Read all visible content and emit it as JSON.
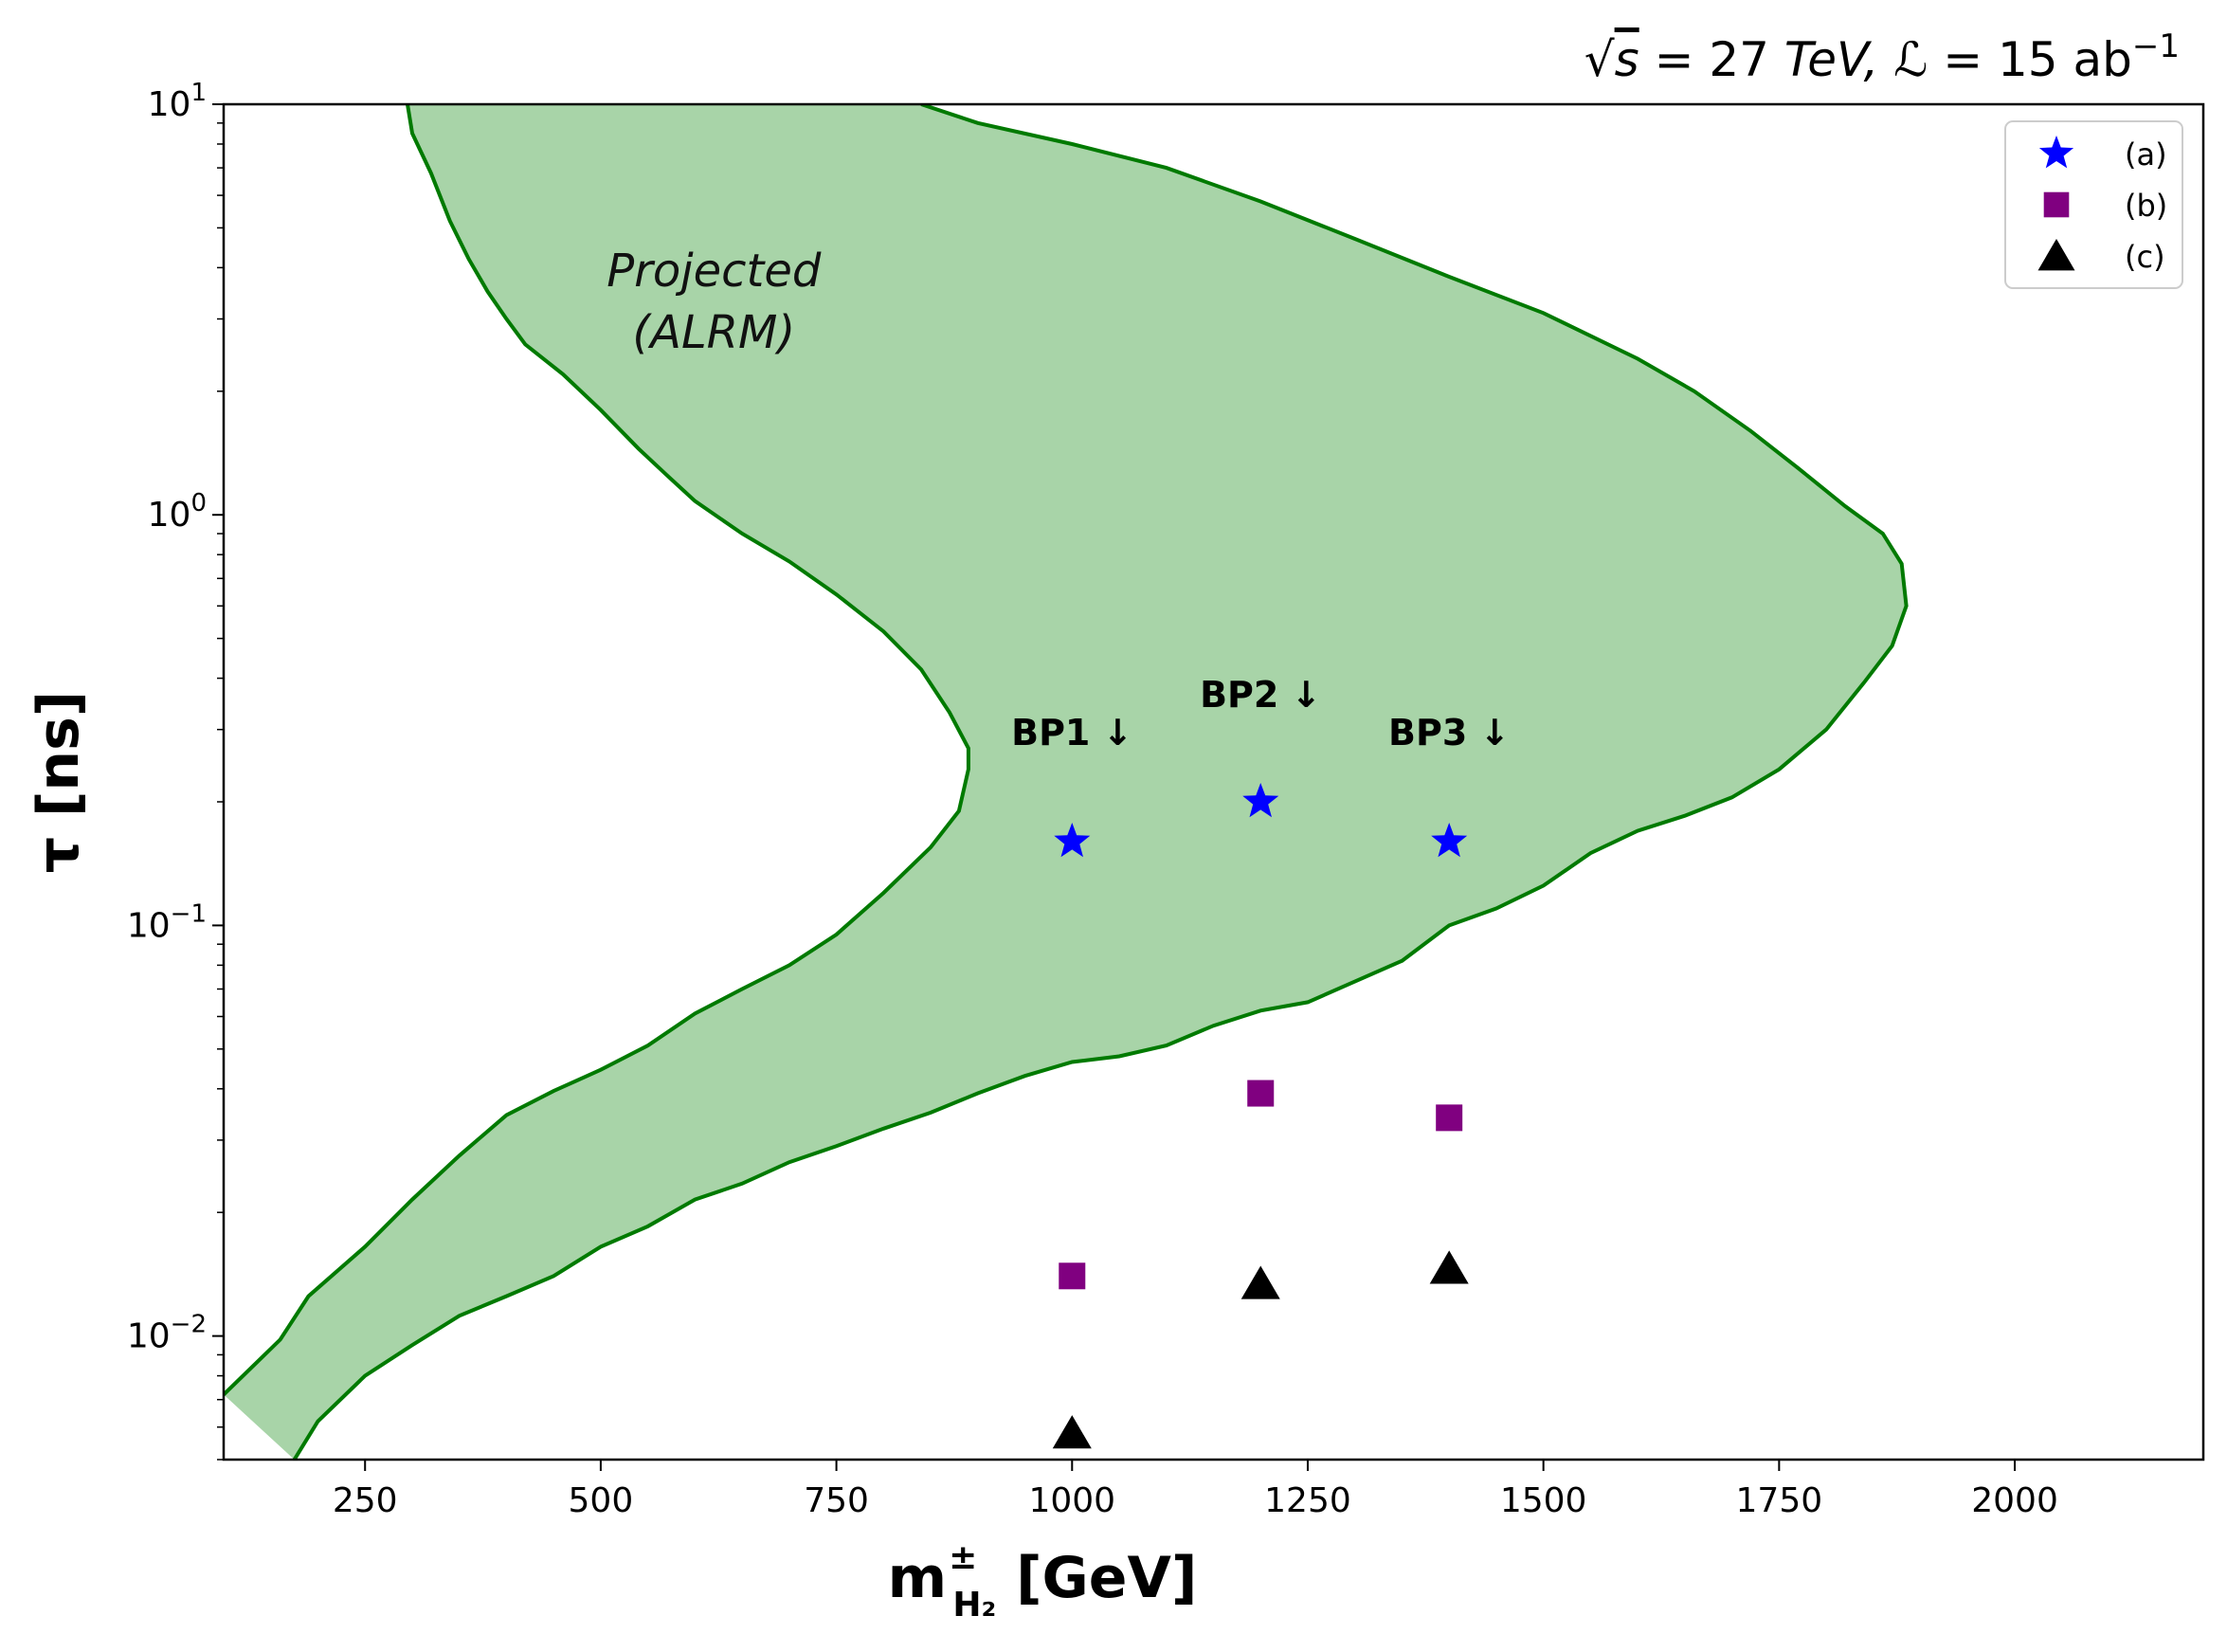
{
  "chart_data": {
    "type": "scatter",
    "title": "√s = 27 TeV,  ℒ = 15 ab⁻¹",
    "title_parts": {
      "sqrt": "√",
      "s": "s",
      "eq1": " = 27 ",
      "tev": "TeV,",
      "lum": "  ℒ",
      "eq2": " = 15 ab",
      "sup": "−1"
    },
    "xlabel": {
      "main": "m",
      "sup": "±",
      "sub": "H₂",
      "unit": " [GeV]"
    },
    "ylabel": "τ [ns]",
    "xlim": [
      100,
      2200
    ],
    "ylim": [
      0.005,
      10
    ],
    "yscale": "log",
    "x_ticks": [
      {
        "value": 250,
        "label": "250"
      },
      {
        "value": 500,
        "label": "500"
      },
      {
        "value": 750,
        "label": "750"
      },
      {
        "value": 1000,
        "label": "1000"
      },
      {
        "value": 1250,
        "label": "1250"
      },
      {
        "value": 1500,
        "label": "1500"
      },
      {
        "value": 1750,
        "label": "1750"
      },
      {
        "value": 2000,
        "label": "2000"
      }
    ],
    "y_ticks": [
      {
        "value": 0.01,
        "base": "10",
        "exp": "−2"
      },
      {
        "value": 0.1,
        "base": "10",
        "exp": "−1"
      },
      {
        "value": 1,
        "base": "10",
        "exp": "0"
      },
      {
        "value": 10,
        "base": "10",
        "exp": "1"
      }
    ],
    "region": {
      "label_line1": "Projected",
      "label_line2": "(ALRM)",
      "fill_color": "#a8d4a8",
      "line_color": "#007a00",
      "upper_boundary": [
        [
          100,
          0.0072
        ],
        [
          160,
          0.0098
        ],
        [
          190,
          0.0125
        ],
        [
          250,
          0.0165
        ],
        [
          300,
          0.0215
        ],
        [
          350,
          0.0275
        ],
        [
          400,
          0.0345
        ],
        [
          450,
          0.0395
        ],
        [
          500,
          0.0445
        ],
        [
          550,
          0.051
        ],
        [
          600,
          0.061
        ],
        [
          650,
          0.07
        ],
        [
          700,
          0.08
        ],
        [
          750,
          0.095
        ],
        [
          800,
          0.12
        ],
        [
          850,
          0.155
        ],
        [
          880,
          0.19
        ],
        [
          890,
          0.24
        ],
        [
          890,
          0.27
        ],
        [
          870,
          0.33
        ],
        [
          840,
          0.42
        ],
        [
          800,
          0.52
        ],
        [
          750,
          0.64
        ],
        [
          700,
          0.77
        ],
        [
          650,
          0.9
        ],
        [
          600,
          1.08
        ],
        [
          570,
          1.25
        ],
        [
          540,
          1.45
        ],
        [
          500,
          1.8
        ],
        [
          460,
          2.2
        ],
        [
          420,
          2.6
        ],
        [
          400,
          3.0
        ],
        [
          380,
          3.5
        ],
        [
          360,
          4.2
        ],
        [
          340,
          5.2
        ],
        [
          320,
          6.8
        ],
        [
          300,
          8.5
        ],
        [
          295,
          10.0
        ]
      ],
      "lower_boundary": [
        [
          175,
          0.005
        ],
        [
          200,
          0.0062
        ],
        [
          250,
          0.008
        ],
        [
          300,
          0.0095
        ],
        [
          350,
          0.0112
        ],
        [
          400,
          0.0125
        ],
        [
          450,
          0.014
        ],
        [
          500,
          0.0165
        ],
        [
          550,
          0.0185
        ],
        [
          600,
          0.0215
        ],
        [
          650,
          0.0235
        ],
        [
          700,
          0.0265
        ],
        [
          750,
          0.029
        ],
        [
          800,
          0.032
        ],
        [
          850,
          0.035
        ],
        [
          900,
          0.039
        ],
        [
          950,
          0.043
        ],
        [
          1000,
          0.0465
        ],
        [
          1050,
          0.048
        ],
        [
          1100,
          0.051
        ],
        [
          1150,
          0.057
        ],
        [
          1200,
          0.062
        ],
        [
          1250,
          0.065
        ],
        [
          1300,
          0.073
        ],
        [
          1350,
          0.082
        ],
        [
          1400,
          0.1
        ],
        [
          1450,
          0.11
        ],
        [
          1500,
          0.125
        ],
        [
          1550,
          0.15
        ],
        [
          1600,
          0.17
        ],
        [
          1650,
          0.185
        ],
        [
          1700,
          0.205
        ],
        [
          1750,
          0.24
        ],
        [
          1800,
          0.3
        ],
        [
          1840,
          0.39
        ],
        [
          1870,
          0.48
        ],
        [
          1885,
          0.6
        ],
        [
          1880,
          0.76
        ],
        [
          1860,
          0.9
        ],
        [
          1820,
          1.05
        ],
        [
          1770,
          1.3
        ],
        [
          1720,
          1.6
        ],
        [
          1660,
          2.0
        ],
        [
          1600,
          2.4
        ],
        [
          1500,
          3.1
        ],
        [
          1400,
          3.8
        ],
        [
          1300,
          4.7
        ],
        [
          1200,
          5.8
        ],
        [
          1100,
          7.0
        ],
        [
          1000,
          8.0
        ],
        [
          900,
          9.0
        ],
        [
          840,
          10.0
        ]
      ]
    },
    "annotations": [
      {
        "text": "BP1 ↓",
        "x": 1000,
        "y": 0.275
      },
      {
        "text": "BP2 ↓",
        "x": 1200,
        "y": 0.34
      },
      {
        "text": "BP3 ↓",
        "x": 1400,
        "y": 0.275
      }
    ],
    "series": [
      {
        "name": "(a)",
        "marker": "star",
        "color": "#0000ff",
        "points": [
          [
            1000,
            0.16
          ],
          [
            1200,
            0.2
          ],
          [
            1400,
            0.16
          ]
        ]
      },
      {
        "name": "(b)",
        "marker": "square",
        "color": "#800080",
        "points": [
          [
            1000,
            0.014
          ],
          [
            1200,
            0.039
          ],
          [
            1400,
            0.034
          ]
        ]
      },
      {
        "name": "(c)",
        "marker": "triangle",
        "color": "#000000",
        "points": [
          [
            1000,
            0.0058
          ],
          [
            1200,
            0.0134
          ],
          [
            1400,
            0.0146
          ]
        ]
      }
    ],
    "legend_position": "top-right",
    "grid": false
  }
}
